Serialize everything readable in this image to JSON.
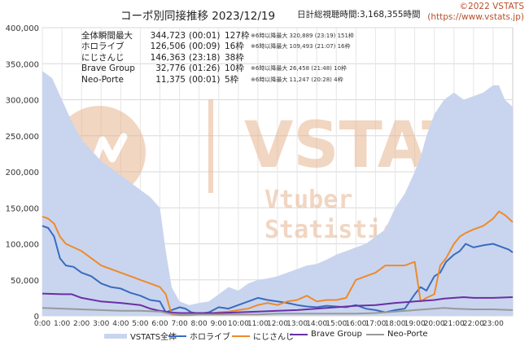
{
  "header": {
    "title": "コーポ別同接推移 2023/12/19",
    "total_label": "日計総視聴時間:3,168,355時間",
    "credit_line1": "©2022 VSTATS",
    "credit_line2": "(https://www.vstats.jp)"
  },
  "stats_table": [
    {
      "name": "全体瞬間最大",
      "value": "344,723",
      "time": "(00:01)",
      "count": "127枠",
      "sub": "※6時以降最大 320,889 (23:19) 151枠"
    },
    {
      "name": "ホロライブ",
      "value": "126,506",
      "time": "(00:09)",
      "count": "16枠",
      "sub": "※6時以降最大 109,493 (21:07) 16枠"
    },
    {
      "name": "にじさんじ",
      "value": "146,363",
      "time": "(23:18)",
      "count": "38枠",
      "sub": ""
    },
    {
      "name": "Brave Group",
      "value": "32,776",
      "time": "(01:26)",
      "count": "10枠",
      "sub": "※6時以降最大 26,458 (21:48) 10枠"
    },
    {
      "name": "Neo-Porte",
      "value": "11,375",
      "time": "(00:01)",
      "count": "5枠",
      "sub": "※6時以降最大 11,247 (20:28) 4枠"
    }
  ],
  "watermark": {
    "big": "VSTATS",
    "line1": "Vtuber",
    "line2": "Statistics"
  },
  "chart_data": {
    "type": "line",
    "title": "コーポ別同接推移 2023/12/19",
    "xlabel": "",
    "ylabel": "",
    "ylim": [
      0,
      400000
    ],
    "y_ticks": [
      0,
      50000,
      100000,
      150000,
      200000,
      250000,
      300000,
      350000,
      400000
    ],
    "y_tick_labels": [
      "0",
      "50,000",
      "100,000",
      "150,000",
      "200,000",
      "250,000",
      "300,000",
      "350,000",
      "400,000"
    ],
    "x_range_hours": [
      0,
      24
    ],
    "x_tick_labels": [
      "0:00",
      "1:00",
      "2:00",
      "3:00",
      "4:00",
      "5:00",
      "6:00",
      "7:00",
      "8:00",
      "9:00",
      "10:00",
      "11:00",
      "12:00",
      "13:00",
      "14:00",
      "15:00",
      "16:00",
      "17:00",
      "18:00",
      "19:00",
      "20:00",
      "21:00",
      "22:00",
      "23:00"
    ],
    "legend_position": "bottom",
    "series": [
      {
        "name": "VSTATS全体",
        "style": "area",
        "color": "#c9d5ef",
        "x": [
          0,
          0.5,
          1,
          1.5,
          2,
          2.5,
          3,
          3.5,
          4,
          4.5,
          5,
          5.5,
          6,
          6.3,
          6.6,
          7,
          7.5,
          8,
          8.5,
          9,
          9.5,
          10,
          10.5,
          11,
          11.5,
          12,
          12.5,
          13,
          13.5,
          14,
          14.5,
          15,
          15.5,
          16,
          16.5,
          17,
          17.5,
          18,
          18.5,
          19,
          19.3,
          19.6,
          20,
          20.5,
          21,
          21.5,
          22,
          22.5,
          23,
          23.3,
          23.6,
          24
        ],
        "values": [
          340000,
          330000,
          300000,
          270000,
          245000,
          230000,
          215000,
          205000,
          195000,
          185000,
          175000,
          165000,
          150000,
          90000,
          40000,
          20000,
          15000,
          18000,
          20000,
          30000,
          40000,
          35000,
          45000,
          50000,
          52000,
          55000,
          60000,
          65000,
          70000,
          72000,
          78000,
          85000,
          90000,
          95000,
          100000,
          110000,
          120000,
          150000,
          170000,
          200000,
          220000,
          250000,
          280000,
          300000,
          310000,
          300000,
          305000,
          310000,
          320000,
          320000,
          300000,
          290000
        ]
      },
      {
        "name": "ホロライブ",
        "style": "line",
        "color": "#3a6bbf",
        "x": [
          0,
          0.3,
          0.6,
          0.9,
          1.2,
          1.6,
          2,
          2.5,
          3,
          3.5,
          4,
          4.5,
          5,
          5.5,
          6,
          6.3,
          6.6,
          7,
          7.3,
          7.6,
          8,
          8.5,
          9,
          9.5,
          10,
          10.5,
          11,
          11.5,
          12,
          12.5,
          13,
          13.5,
          14,
          14.5,
          15,
          15.5,
          16,
          16.5,
          17,
          17.5,
          18,
          18.5,
          19,
          19.3,
          19.6,
          20,
          20.3,
          20.6,
          21,
          21.3,
          21.6,
          22,
          22.5,
          23,
          23.5,
          23.8,
          24
        ],
        "values": [
          125000,
          122000,
          110000,
          80000,
          70000,
          68000,
          60000,
          55000,
          45000,
          40000,
          38000,
          32000,
          28000,
          22000,
          20000,
          5000,
          8000,
          12000,
          10000,
          5000,
          3000,
          5000,
          12000,
          10000,
          15000,
          20000,
          25000,
          22000,
          20000,
          18000,
          15000,
          13000,
          12000,
          14000,
          13000,
          12000,
          15000,
          10000,
          8000,
          5000,
          8000,
          10000,
          30000,
          40000,
          35000,
          55000,
          60000,
          75000,
          85000,
          90000,
          100000,
          95000,
          98000,
          100000,
          95000,
          92000,
          88000
        ]
      },
      {
        "name": "にじさんじ",
        "style": "line",
        "color": "#ee8a2c",
        "x": [
          0,
          0.3,
          0.6,
          0.9,
          1.2,
          1.6,
          2,
          2.5,
          3,
          3.5,
          4,
          4.5,
          5,
          5.5,
          6,
          6.3,
          6.6,
          7,
          7.5,
          8,
          8.5,
          9,
          9.5,
          10,
          10.5,
          11,
          11.5,
          12,
          12.5,
          13,
          13.5,
          14,
          14.5,
          15,
          15.5,
          16,
          16.5,
          17,
          17.5,
          18,
          18.5,
          19,
          19.3,
          19.6,
          20,
          20.3,
          20.6,
          21,
          21.3,
          21.6,
          22,
          22.5,
          23,
          23.3,
          23.6,
          24
        ],
        "values": [
          138000,
          135000,
          128000,
          110000,
          100000,
          95000,
          90000,
          80000,
          70000,
          65000,
          60000,
          55000,
          50000,
          45000,
          40000,
          30000,
          2000,
          1000,
          1000,
          2000,
          3000,
          5000,
          6000,
          8000,
          10000,
          15000,
          18000,
          15000,
          20000,
          22000,
          28000,
          20000,
          22000,
          22000,
          25000,
          50000,
          55000,
          60000,
          70000,
          70000,
          70000,
          75000,
          20000,
          25000,
          30000,
          70000,
          80000,
          100000,
          110000,
          115000,
          120000,
          125000,
          135000,
          145000,
          140000,
          130000
        ]
      },
      {
        "name": "Brave Group",
        "style": "line",
        "color": "#6a2fa3",
        "x": [
          0,
          1,
          1.5,
          2,
          3,
          4,
          5,
          5.5,
          6,
          6.5,
          7,
          8,
          9,
          10,
          11,
          12,
          13,
          14,
          15,
          16,
          17,
          18,
          19,
          20,
          20.5,
          21,
          21.5,
          22,
          23,
          24
        ],
        "values": [
          31000,
          30000,
          30000,
          25000,
          20000,
          18000,
          15000,
          10000,
          7000,
          5000,
          4000,
          4000,
          4000,
          5000,
          6000,
          7000,
          8000,
          10000,
          12000,
          14000,
          15000,
          18000,
          20000,
          22000,
          24000,
          25000,
          26000,
          25000,
          25000,
          26000
        ]
      },
      {
        "name": "Neo-Porte",
        "style": "line",
        "color": "#999999",
        "x": [
          0,
          1,
          2,
          3,
          4,
          5,
          6,
          6.5,
          7,
          8,
          9,
          10,
          11,
          12,
          13,
          14,
          15,
          16,
          17,
          18,
          19,
          20,
          20.5,
          21,
          22,
          23,
          24
        ],
        "values": [
          11000,
          10000,
          9000,
          8000,
          7000,
          7000,
          6000,
          3000,
          2000,
          2000,
          2000,
          2000,
          2000,
          3000,
          3000,
          3000,
          3000,
          3000,
          4000,
          6000,
          8000,
          10000,
          11000,
          10000,
          9000,
          9000,
          8000
        ]
      }
    ]
  },
  "colors": {
    "watermark": "#e7b592",
    "grid": "#d8d8d8"
  }
}
